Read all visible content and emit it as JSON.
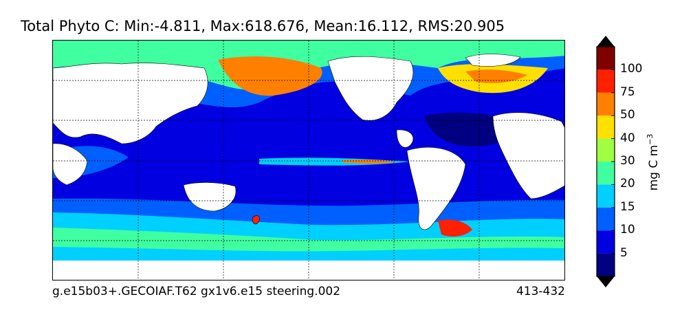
{
  "title": "Total Phyto C: Min:-4.811, Max:618.676, Mean:16.112, RMS:20.905",
  "footer": {
    "case": "g.e15b03+.GECOIAF.T62 gx1v6.e15 steering.002",
    "years": "413-432"
  },
  "colorbar": {
    "units_prefix": "mg C m",
    "units_exponent": "−3",
    "levels": [
      "5",
      "10",
      "15",
      "20",
      "30",
      "40",
      "50",
      "75",
      "100"
    ],
    "colors": [
      "#000080",
      "#0000e0",
      "#0060ff",
      "#00d0ff",
      "#40ffa0",
      "#a0ff40",
      "#ffe000",
      "#ff8000",
      "#ff2000",
      "#800000"
    ],
    "extend": "both"
  },
  "map": {
    "projection": "global lat-lon",
    "land_color": "#ffffff",
    "grid": true
  }
}
